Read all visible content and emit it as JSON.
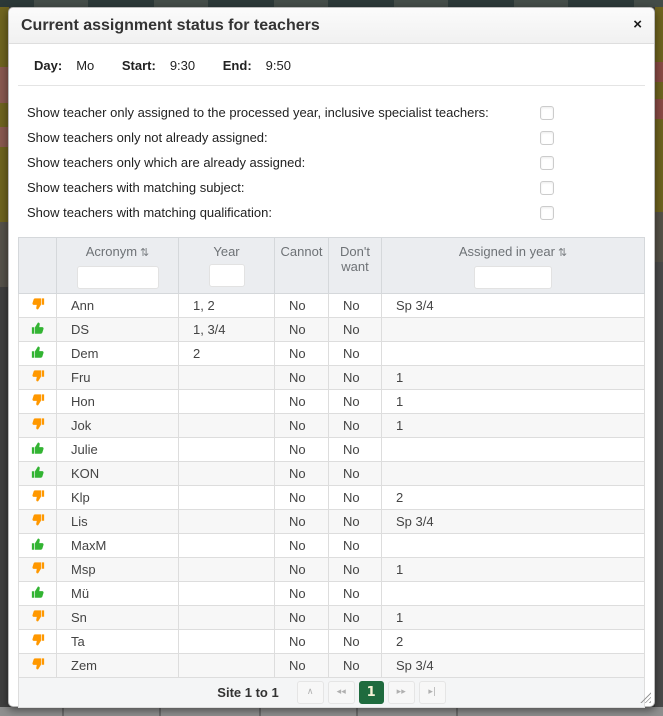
{
  "modal": {
    "title": "Current assignment status for teachers",
    "close_icon": "×",
    "info": {
      "day_label": "Day:",
      "day_value": "Mo",
      "start_label": "Start:",
      "start_value": "9:30",
      "end_label": "End:",
      "end_value": "9:50"
    },
    "filters": [
      {
        "label": "Show teacher only assigned to the processed year, inclusive specialist teachers:",
        "checked": false
      },
      {
        "label": "Show teachers only not already assigned:",
        "checked": false
      },
      {
        "label": "Show teachers only which are already assigned:",
        "checked": false
      },
      {
        "label": "Show teachers with matching subject:",
        "checked": false
      },
      {
        "label": "Show teachers with matching qualification:",
        "checked": false
      }
    ],
    "table": {
      "sort_icon": "⇅",
      "columns": {
        "status": "",
        "acronym": "Acronym",
        "year": "Year",
        "cannot": "Cannot",
        "dont_want": "Don't want",
        "assigned": "Assigned in year"
      },
      "filter_inputs": {
        "acronym_value": "",
        "year_value": "",
        "assigned_value": ""
      },
      "rows": [
        {
          "status": "down",
          "acronym": "Ann",
          "year": "1, 2",
          "cannot": "No",
          "dont_want": "No",
          "assigned": "Sp 3/4"
        },
        {
          "status": "up",
          "acronym": "DS",
          "year": "1, 3/4",
          "cannot": "No",
          "dont_want": "No",
          "assigned": ""
        },
        {
          "status": "up",
          "acronym": "Dem",
          "year": "2",
          "cannot": "No",
          "dont_want": "No",
          "assigned": ""
        },
        {
          "status": "down",
          "acronym": "Fru",
          "year": "",
          "cannot": "No",
          "dont_want": "No",
          "assigned": "1"
        },
        {
          "status": "down",
          "acronym": "Hon",
          "year": "",
          "cannot": "No",
          "dont_want": "No",
          "assigned": "1"
        },
        {
          "status": "down",
          "acronym": "Jok",
          "year": "",
          "cannot": "No",
          "dont_want": "No",
          "assigned": "1"
        },
        {
          "status": "up",
          "acronym": "Julie",
          "year": "",
          "cannot": "No",
          "dont_want": "No",
          "assigned": ""
        },
        {
          "status": "up",
          "acronym": "KON",
          "year": "",
          "cannot": "No",
          "dont_want": "No",
          "assigned": ""
        },
        {
          "status": "down",
          "acronym": "Klp",
          "year": "",
          "cannot": "No",
          "dont_want": "No",
          "assigned": "2"
        },
        {
          "status": "down",
          "acronym": "Lis",
          "year": "",
          "cannot": "No",
          "dont_want": "No",
          "assigned": "Sp 3/4"
        },
        {
          "status": "up",
          "acronym": "MaxM",
          "year": "",
          "cannot": "No",
          "dont_want": "No",
          "assigned": ""
        },
        {
          "status": "down",
          "acronym": "Msp",
          "year": "",
          "cannot": "No",
          "dont_want": "No",
          "assigned": "1"
        },
        {
          "status": "up",
          "acronym": "Mü",
          "year": "",
          "cannot": "No",
          "dont_want": "No",
          "assigned": ""
        },
        {
          "status": "down",
          "acronym": "Sn",
          "year": "",
          "cannot": "No",
          "dont_want": "No",
          "assigned": "1"
        },
        {
          "status": "down",
          "acronym": "Ta",
          "year": "",
          "cannot": "No",
          "dont_want": "No",
          "assigned": "2"
        },
        {
          "status": "down",
          "acronym": "Zem",
          "year": "",
          "cannot": "No",
          "dont_want": "No",
          "assigned": "Sp 3/4"
        }
      ],
      "pager": {
        "summary": "Site 1 to 1",
        "buttons": [
          {
            "name": "first-page-button",
            "glyph": "∧",
            "active": false
          },
          {
            "name": "prev-page-button",
            "glyph": "◂◂",
            "active": false
          },
          {
            "name": "page-1-button",
            "glyph": "1",
            "active": true
          },
          {
            "name": "next-page-button",
            "glyph": "▸▸",
            "active": false
          },
          {
            "name": "last-page-button",
            "glyph": "▸|",
            "active": false
          }
        ]
      }
    }
  },
  "colors": {
    "thumb_up": "#33B433",
    "thumb_down": "#FF9800",
    "active_page_bg": "#1F6B3E",
    "active_page_text": "#F7F3D7"
  }
}
